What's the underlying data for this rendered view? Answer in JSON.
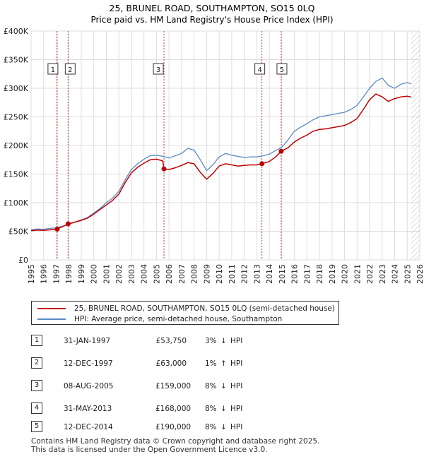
{
  "chart_data": {
    "type": "line",
    "title": "25, BRUNEL ROAD, SOUTHAMPTON, SO15 0LQ",
    "subtitle": "Price paid vs. HM Land Registry's House Price Index (HPI)",
    "xlim": [
      1995,
      2026
    ],
    "ylim": [
      0,
      400000
    ],
    "x_ticks": [
      "1995",
      "1996",
      "1997",
      "1998",
      "1999",
      "2000",
      "2001",
      "2002",
      "2003",
      "2004",
      "2005",
      "2006",
      "2007",
      "2008",
      "2009",
      "2010",
      "2011",
      "2012",
      "2013",
      "2014",
      "2015",
      "2016",
      "2017",
      "2018",
      "2019",
      "2020",
      "2021",
      "2022",
      "2023",
      "2024",
      "2025",
      "2026"
    ],
    "y_ticks": [
      {
        "value": 0,
        "label": "£0"
      },
      {
        "value": 50000,
        "label": "£50K"
      },
      {
        "value": 100000,
        "label": "£100K"
      },
      {
        "value": 150000,
        "label": "£150K"
      },
      {
        "value": 200000,
        "label": "£200K"
      },
      {
        "value": 250000,
        "label": "£250K"
      },
      {
        "value": 300000,
        "label": "£300K"
      },
      {
        "value": 350000,
        "label": "£350K"
      },
      {
        "value": 400000,
        "label": "£400K"
      }
    ],
    "series": [
      {
        "name": "HPI: Average price, semi-detached house, Southampton",
        "color": "#5a8ac6",
        "x": [
          1995.0,
          1995.5,
          1996.0,
          1996.5,
          1997.0,
          1997.5,
          1998.0,
          1998.5,
          1999.0,
          1999.5,
          2000.0,
          2000.5,
          2001.0,
          2001.5,
          2002.0,
          2002.5,
          2003.0,
          2003.5,
          2004.0,
          2004.5,
          2005.0,
          2005.5,
          2006.0,
          2006.5,
          2007.0,
          2007.5,
          2008.0,
          2008.5,
          2009.0,
          2009.5,
          2010.0,
          2010.5,
          2011.0,
          2011.5,
          2012.0,
          2012.5,
          2013.0,
          2013.5,
          2014.0,
          2014.5,
          2015.0,
          2015.5,
          2016.0,
          2016.5,
          2017.0,
          2017.5,
          2018.0,
          2018.5,
          2019.0,
          2019.5,
          2020.0,
          2020.5,
          2021.0,
          2021.5,
          2022.0,
          2022.5,
          2023.0,
          2023.5,
          2024.0,
          2024.5,
          2025.0,
          2025.3
        ],
        "y": [
          53000,
          54000,
          53500,
          55000,
          56000,
          59000,
          62000,
          66000,
          70000,
          74000,
          82000,
          90000,
          100000,
          108000,
          120000,
          140000,
          158000,
          168000,
          176000,
          182000,
          183000,
          181000,
          178000,
          182000,
          186000,
          195000,
          192000,
          175000,
          156000,
          166000,
          180000,
          186000,
          183000,
          181000,
          179000,
          180000,
          180000,
          182000,
          185000,
          191000,
          197000,
          210000,
          225000,
          232000,
          238000,
          245000,
          250000,
          252000,
          254000,
          256000,
          258000,
          263000,
          270000,
          285000,
          300000,
          312000,
          318000,
          305000,
          300000,
          307000,
          310000,
          308000
        ]
      },
      {
        "name": "25, BRUNEL ROAD, SOUTHAMPTON, SO15 0LQ (semi-detached house)",
        "color": "#c00000",
        "x": [
          1995.0,
          1995.5,
          1996.0,
          1996.5,
          1997.0,
          1997.5,
          1998.0,
          1998.5,
          1999.0,
          1999.5,
          2000.0,
          2000.5,
          2001.0,
          2001.5,
          2002.0,
          2002.5,
          2003.0,
          2003.5,
          2004.0,
          2004.5,
          2005.0,
          2005.5,
          2005.6,
          2006.0,
          2006.5,
          2007.0,
          2007.5,
          2008.0,
          2008.5,
          2009.0,
          2009.5,
          2010.0,
          2010.5,
          2011.0,
          2011.5,
          2012.0,
          2012.5,
          2013.0,
          2013.4,
          2014.0,
          2014.5,
          2014.95,
          2015.5,
          2016.0,
          2016.5,
          2017.0,
          2017.5,
          2018.0,
          2018.5,
          2019.0,
          2019.5,
          2020.0,
          2020.5,
          2021.0,
          2021.5,
          2022.0,
          2022.5,
          2023.0,
          2023.5,
          2024.0,
          2024.5,
          2025.0,
          2025.3
        ],
        "y": [
          51000,
          52000,
          51500,
          52500,
          53750,
          58000,
          63000,
          66000,
          69000,
          73000,
          80000,
          88000,
          96000,
          104000,
          115000,
          135000,
          152000,
          162000,
          169000,
          175000,
          176000,
          173000,
          159000,
          158000,
          161000,
          165000,
          170000,
          168000,
          153000,
          141000,
          151000,
          164000,
          168000,
          166000,
          164000,
          165000,
          166000,
          166000,
          168000,
          172000,
          180000,
          190000,
          196000,
          206000,
          213000,
          218000,
          225000,
          228000,
          229000,
          231000,
          233000,
          235000,
          240000,
          247000,
          263000,
          280000,
          290000,
          285000,
          277000,
          282000,
          285000,
          286000,
          285000
        ]
      }
    ],
    "sales": [
      {
        "n": "1",
        "x": 1997.08,
        "price": 53750
      },
      {
        "n": "2",
        "x": 1997.95,
        "price": 63000
      },
      {
        "n": "3",
        "x": 2005.6,
        "price": 159000
      },
      {
        "n": "4",
        "x": 2013.41,
        "price": 168000
      },
      {
        "n": "5",
        "x": 2014.95,
        "price": 190000
      }
    ],
    "future_hatch_from": 2025.3
  },
  "legend": {
    "property_label": "25, BRUNEL ROAD, SOUTHAMPTON, SO15 0LQ (semi-detached house)",
    "hpi_label": "HPI: Average price, semi-detached house, Southampton"
  },
  "transactions": [
    {
      "n": "1",
      "date": "31-JAN-1997",
      "price": "£53,750",
      "pct": "3%",
      "arrow": "↓",
      "hpi": "HPI"
    },
    {
      "n": "2",
      "date": "12-DEC-1997",
      "price": "£63,000",
      "pct": "1%",
      "arrow": "↑",
      "hpi": "HPI"
    },
    {
      "n": "3",
      "date": "08-AUG-2005",
      "price": "£159,000",
      "pct": "8%",
      "arrow": "↓",
      "hpi": "HPI"
    },
    {
      "n": "4",
      "date": "31-MAY-2013",
      "price": "£168,000",
      "pct": "8%",
      "arrow": "↓",
      "hpi": "HPI"
    },
    {
      "n": "5",
      "date": "12-DEC-2014",
      "price": "£190,000",
      "pct": "8%",
      "arrow": "↓",
      "hpi": "HPI"
    }
  ],
  "footer": {
    "line1": "Contains HM Land Registry data © Crown copyright and database right 2025.",
    "line2": "This data is licensed under the Open Government Licence v3.0."
  },
  "colors": {
    "property": "#c00000",
    "hpi": "#5a8ac6",
    "grid": "#dddddd",
    "sale_line": "#cc3333"
  }
}
